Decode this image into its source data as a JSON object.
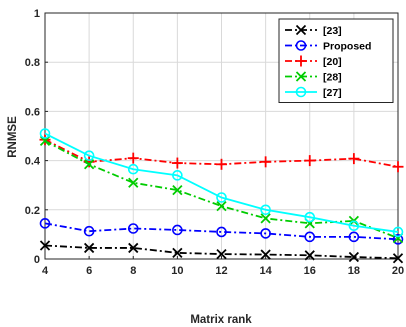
{
  "chart_data": {
    "type": "line",
    "xlabel": "Matrix rank",
    "ylabel": "RNMSE",
    "x": [
      4,
      6,
      8,
      10,
      12,
      14,
      16,
      18,
      20
    ],
    "xlim": [
      4,
      20
    ],
    "ylim": [
      0,
      1
    ],
    "xticks": [
      "4",
      "6",
      "8",
      "10",
      "12",
      "14",
      "16",
      "18",
      "20"
    ],
    "yticks": [
      "0",
      "0.2",
      "0.4",
      "0.6",
      "0.8",
      "1"
    ],
    "grid": true,
    "legend_position": "top-right",
    "series": [
      {
        "name": "[23]",
        "color": "#000000",
        "marker": "x",
        "dash": "dashdot",
        "values": [
          0.055,
          0.045,
          0.045,
          0.025,
          0.02,
          0.018,
          0.015,
          0.008,
          0.003
        ]
      },
      {
        "name": "Proposed",
        "color": "#0000ff",
        "marker": "o",
        "dash": "dashdot",
        "values": [
          0.145,
          0.113,
          0.124,
          0.118,
          0.11,
          0.104,
          0.09,
          0.09,
          0.08
        ]
      },
      {
        "name": "[20]",
        "color": "#ff0000",
        "marker": "+",
        "dash": "dashdot",
        "values": [
          0.485,
          0.395,
          0.41,
          0.39,
          0.385,
          0.395,
          0.4,
          0.408,
          0.375
        ]
      },
      {
        "name": "[28]",
        "color": "#00cc00",
        "marker": "x",
        "dash": "dashdot",
        "values": [
          0.48,
          0.385,
          0.31,
          0.28,
          0.215,
          0.165,
          0.145,
          0.155,
          0.085
        ]
      },
      {
        "name": "[27]",
        "color": "#00ffff",
        "marker": "o",
        "dash": "solid",
        "values": [
          0.51,
          0.42,
          0.365,
          0.34,
          0.25,
          0.2,
          0.17,
          0.135,
          0.11
        ]
      }
    ]
  }
}
